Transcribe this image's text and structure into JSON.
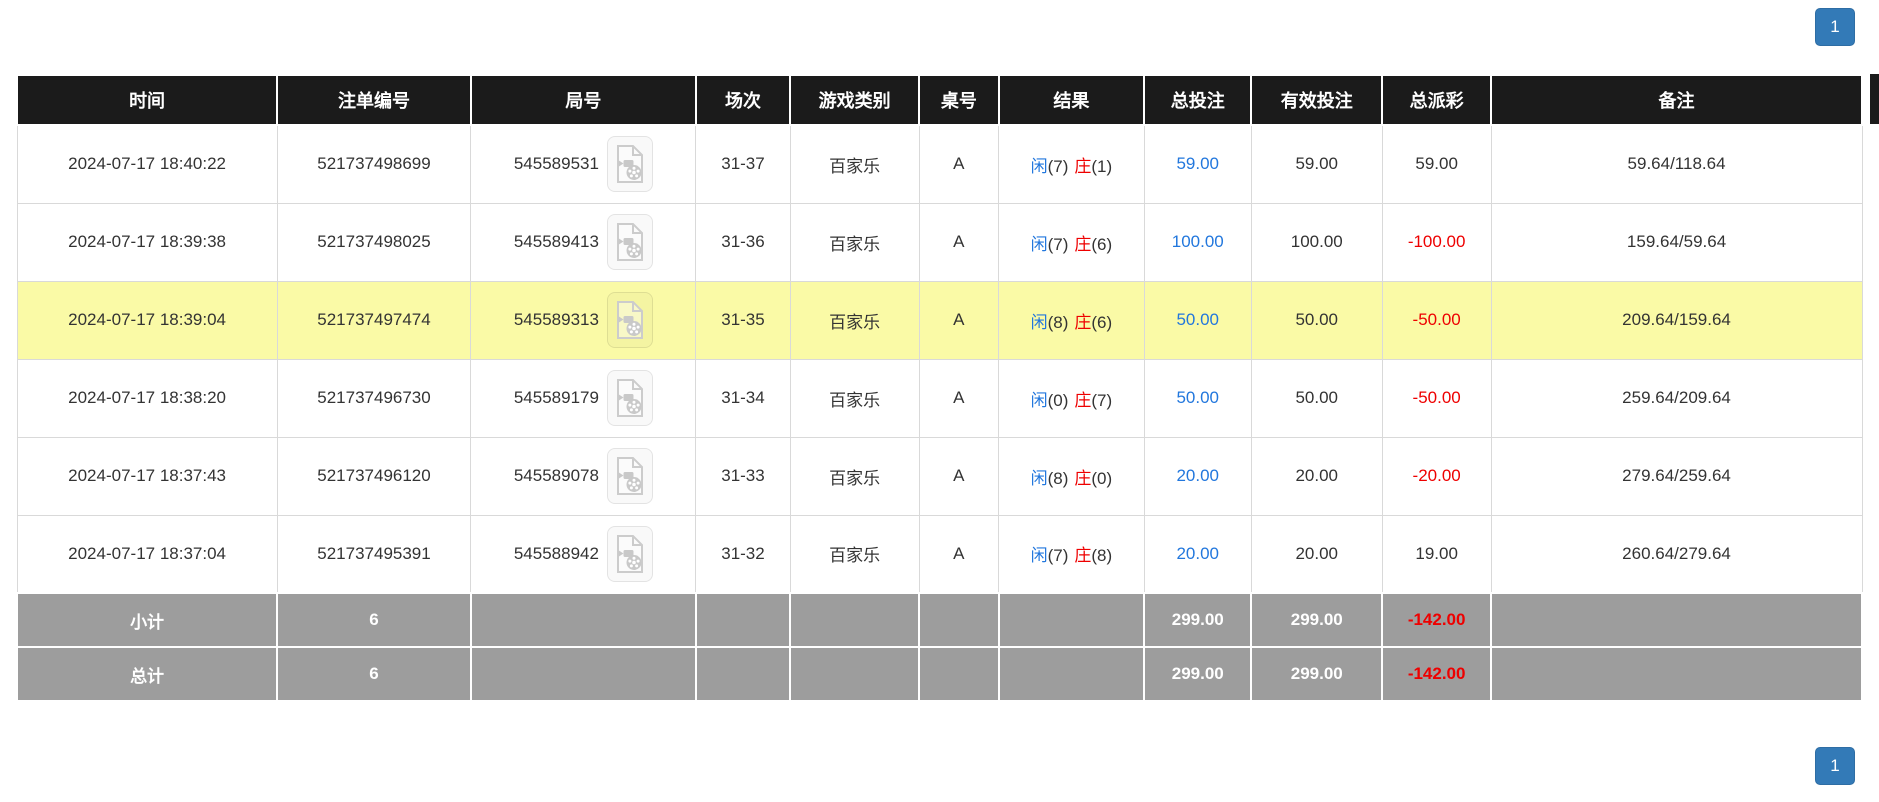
{
  "colors": {
    "header_bg": "#1b1b1b",
    "highlight_row": "#fafaa6",
    "footer_bg": "#9d9d9d",
    "value_blue": "#2277dd",
    "value_red": "#ee0000",
    "pager_blue": "#337ab7"
  },
  "pagination": {
    "page": "1"
  },
  "table": {
    "columns": [
      {
        "label": "时间"
      },
      {
        "label": "注单编号"
      },
      {
        "label": "局号"
      },
      {
        "label": "场次"
      },
      {
        "label": "游戏类别"
      },
      {
        "label": "桌号"
      },
      {
        "label": "结果"
      },
      {
        "label": "总投注"
      },
      {
        "label": "有效投注"
      },
      {
        "label": "总派彩"
      },
      {
        "label": "备注"
      }
    ],
    "rows": [
      {
        "time": "2024-07-17 18:40:22",
        "bet_id": "521737498699",
        "round_id": "545589531",
        "session": "31-37",
        "game": "百家乐",
        "table_no": "A",
        "result": {
          "player_label": "闲",
          "player_score": "(7)",
          "banker_label": "庄",
          "banker_score": "(1)"
        },
        "total_bet": "59.00",
        "valid_bet": "59.00",
        "payout": "59.00",
        "remark": "59.64/118.64",
        "highlighted": false
      },
      {
        "time": "2024-07-17 18:39:38",
        "bet_id": "521737498025",
        "round_id": "545589413",
        "session": "31-36",
        "game": "百家乐",
        "table_no": "A",
        "result": {
          "player_label": "闲",
          "player_score": "(7)",
          "banker_label": "庄",
          "banker_score": "(6)"
        },
        "total_bet": "100.00",
        "valid_bet": "100.00",
        "payout": "-100.00",
        "remark": "159.64/59.64",
        "highlighted": false
      },
      {
        "time": "2024-07-17 18:39:04",
        "bet_id": "521737497474",
        "round_id": "545589313",
        "session": "31-35",
        "game": "百家乐",
        "table_no": "A",
        "result": {
          "player_label": "闲",
          "player_score": "(8)",
          "banker_label": "庄",
          "banker_score": "(6)"
        },
        "total_bet": "50.00",
        "valid_bet": "50.00",
        "payout": "-50.00",
        "remark": "209.64/159.64",
        "highlighted": true
      },
      {
        "time": "2024-07-17 18:38:20",
        "bet_id": "521737496730",
        "round_id": "545589179",
        "session": "31-34",
        "game": "百家乐",
        "table_no": "A",
        "result": {
          "player_label": "闲",
          "player_score": "(0)",
          "banker_label": "庄",
          "banker_score": "(7)"
        },
        "total_bet": "50.00",
        "valid_bet": "50.00",
        "payout": "-50.00",
        "remark": "259.64/209.64",
        "highlighted": false
      },
      {
        "time": "2024-07-17 18:37:43",
        "bet_id": "521737496120",
        "round_id": "545589078",
        "session": "31-33",
        "game": "百家乐",
        "table_no": "A",
        "result": {
          "player_label": "闲",
          "player_score": "(8)",
          "banker_label": "庄",
          "banker_score": "(0)"
        },
        "total_bet": "20.00",
        "valid_bet": "20.00",
        "payout": "-20.00",
        "remark": "279.64/259.64",
        "highlighted": false
      },
      {
        "time": "2024-07-17 18:37:04",
        "bet_id": "521737495391",
        "round_id": "545588942",
        "session": "31-32",
        "game": "百家乐",
        "table_no": "A",
        "result": {
          "player_label": "闲",
          "player_score": "(7)",
          "banker_label": "庄",
          "banker_score": "(8)"
        },
        "total_bet": "20.00",
        "valid_bet": "20.00",
        "payout": "19.00",
        "remark": "260.64/279.64",
        "highlighted": false
      }
    ],
    "footer_rows": [
      {
        "label": "小计",
        "count": "6",
        "total_bet": "299.00",
        "valid_bet": "299.00",
        "payout": "-142.00"
      },
      {
        "label": "总计",
        "count": "6",
        "total_bet": "299.00",
        "valid_bet": "299.00",
        "payout": "-142.00"
      }
    ]
  }
}
